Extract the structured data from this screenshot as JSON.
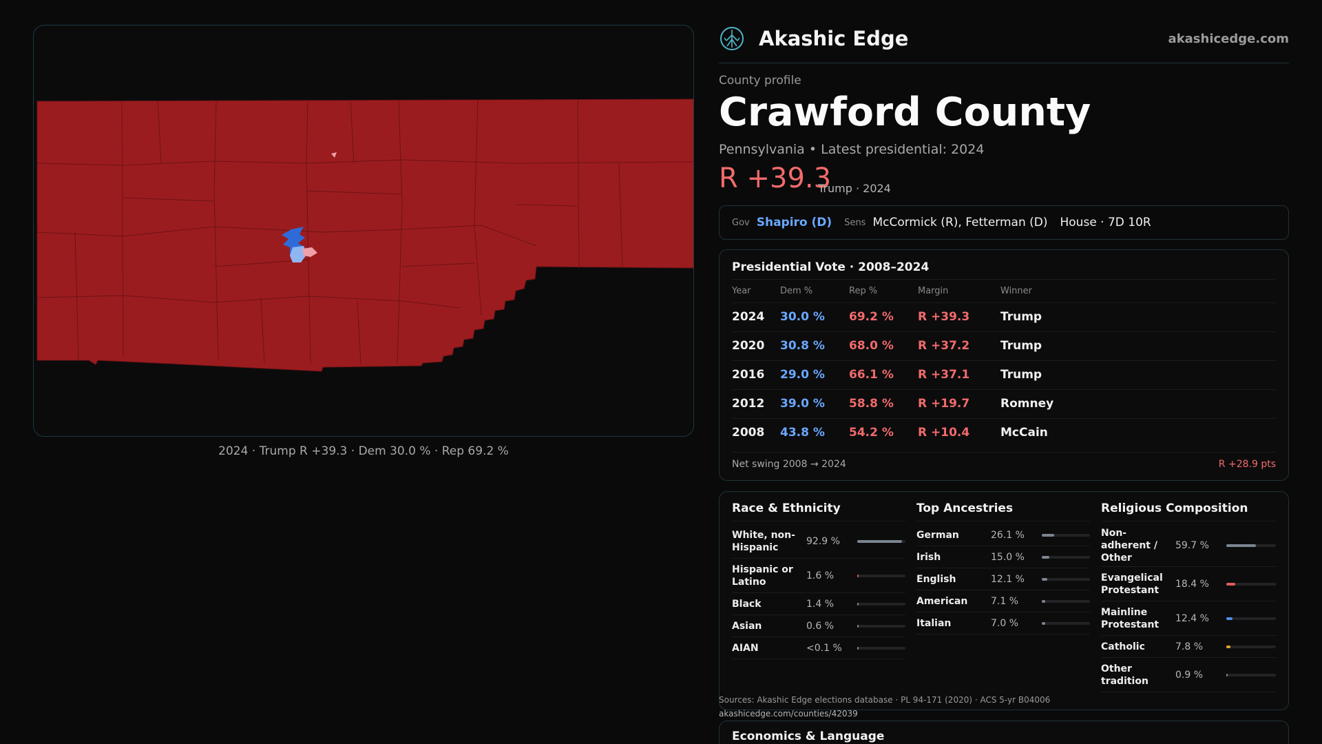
{
  "map": {
    "caption": "2024 · Trump R +39.3 · Dem 30.0 % · Rep 69.2 %",
    "county_fill": "#9b1c1f",
    "township_line": "#6d1315",
    "dem_dark": "#2f6bd8",
    "dem_light": "#8fb6f0",
    "rep_light": "#f0a0a8"
  },
  "header": {
    "brand_name": "Akashic Edge",
    "domain": "akashicedge.com",
    "logo_icon": "tree-of-life-icon",
    "accent": "#4fb7c6"
  },
  "profile": {
    "kicker": "County profile",
    "title": "Crawford County",
    "subtitle": "Pennsylvania • Latest presidential: 2024",
    "margin": "R +39.3",
    "margin_note": "Trump · 2024"
  },
  "officials": {
    "gov_label": "Gov",
    "gov": "Shapiro (D)",
    "sens_label": "Sens",
    "sens": "McCormick (R), Fetterman (D)",
    "house": "House · 7D 10R"
  },
  "presidential": {
    "title": "Presidential Vote · 2008–2024",
    "headers": [
      "Year",
      "Dem %",
      "Rep %",
      "Margin",
      "Winner"
    ],
    "rows": [
      {
        "year": "2024",
        "dem": "30.0 %",
        "rep": "69.2 %",
        "margin": "R +39.3",
        "winner": "Trump"
      },
      {
        "year": "2020",
        "dem": "30.8 %",
        "rep": "68.0 %",
        "margin": "R +37.2",
        "winner": "Trump"
      },
      {
        "year": "2016",
        "dem": "29.0 %",
        "rep": "66.1 %",
        "margin": "R +37.1",
        "winner": "Trump"
      },
      {
        "year": "2012",
        "dem": "39.0 %",
        "rep": "58.8 %",
        "margin": "R +19.7",
        "winner": "Romney"
      },
      {
        "year": "2008",
        "dem": "43.8 %",
        "rep": "54.2 %",
        "margin": "R +10.4",
        "winner": "McCain"
      }
    ],
    "swing_label": "Net swing 2008 → 2024",
    "swing_value": "R +28.9 pts"
  },
  "race": {
    "title": "Race & Ethnicity",
    "items": [
      {
        "label": "White, non-Hispanic",
        "pct": "92.9 %",
        "value": 92.9,
        "color": "#7d8592"
      },
      {
        "label": "Hispanic or Latino",
        "pct": "1.6 %",
        "value": 1.6,
        "color": "#d35d3a"
      },
      {
        "label": "Black",
        "pct": "1.4 %",
        "value": 1.4,
        "color": "#7d8592"
      },
      {
        "label": "Asian",
        "pct": "0.6 %",
        "value": 0.6,
        "color": "#7d8592"
      },
      {
        "label": "AIAN",
        "pct": "<0.1 %",
        "value": 0.05,
        "color": "#7d8592"
      }
    ]
  },
  "ancestry": {
    "title": "Top Ancestries",
    "items": [
      {
        "label": "German",
        "pct": "26.1 %",
        "value": 26.1,
        "color": "#7d8592"
      },
      {
        "label": "Irish",
        "pct": "15.0 %",
        "value": 15.0,
        "color": "#7d8592"
      },
      {
        "label": "English",
        "pct": "12.1 %",
        "value": 12.1,
        "color": "#7d8592"
      },
      {
        "label": "American",
        "pct": "7.1 %",
        "value": 7.1,
        "color": "#7d8592"
      },
      {
        "label": "Italian",
        "pct": "7.0 %",
        "value": 7.0,
        "color": "#7d8592"
      }
    ]
  },
  "religion": {
    "title": "Religious Composition",
    "items": [
      {
        "label": "Non-adherent / Other",
        "pct": "59.7 %",
        "value": 59.7,
        "color": "#7d8592"
      },
      {
        "label": "Evangelical Protestant",
        "pct": "18.4 %",
        "value": 18.4,
        "color": "#e05c5c"
      },
      {
        "label": "Mainline Protestant",
        "pct": "12.4 %",
        "value": 12.4,
        "color": "#4f8ee6"
      },
      {
        "label": "Catholic",
        "pct": "7.8 %",
        "value": 7.8,
        "color": "#e0a52c"
      },
      {
        "label": "Other tradition",
        "pct": "0.9 %",
        "value": 0.9,
        "color": "#7d8592"
      }
    ]
  },
  "sources": {
    "text": "Sources: Akashic Edge elections database · PL 94-171 (2020) · ACS 5-yr B04006",
    "url": "akashicedge.com/counties/42039"
  },
  "economics": {
    "title": "Economics & Language"
  }
}
